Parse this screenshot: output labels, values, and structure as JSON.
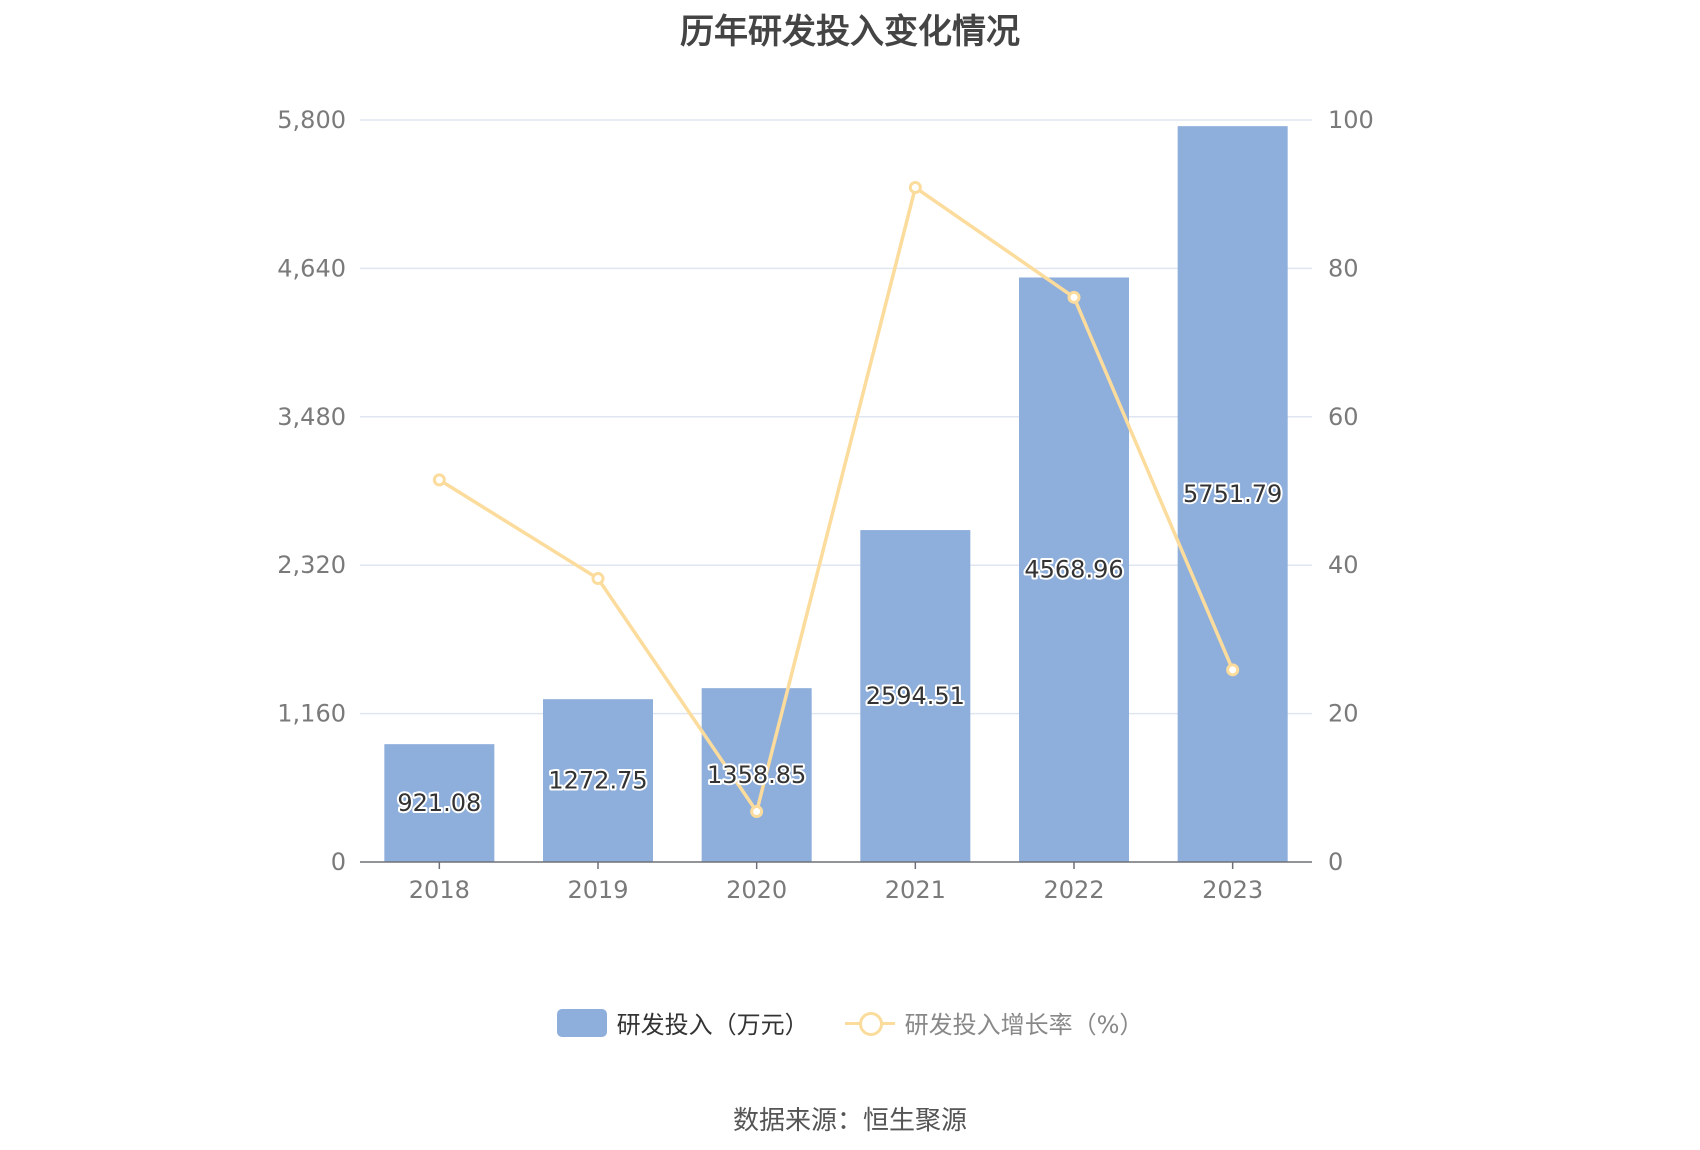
{
  "chart_data": {
    "type": "bar",
    "title": "历年研发投入变化情况",
    "categories": [
      "2018",
      "2019",
      "2020",
      "2021",
      "2022",
      "2023"
    ],
    "series": [
      {
        "name": "研发投入（万元）",
        "type": "bar",
        "axis": "left",
        "values": [
          921.08,
          1272.75,
          1358.85,
          2594.51,
          4568.96,
          5751.79
        ],
        "labels": [
          "921.08",
          "1272.75",
          "1358.85",
          "2594.51",
          "4568.96",
          "5751.79"
        ],
        "color": "#8eaedb"
      },
      {
        "name": "研发投入增长率（%）",
        "type": "line",
        "axis": "right",
        "values": [
          51.5,
          38.2,
          6.8,
          90.9,
          76.1,
          25.9
        ],
        "color": "#fcdc9c"
      }
    ],
    "y_left": {
      "range": [
        0,
        5800
      ],
      "ticks": [
        "0",
        "1,160",
        "2,320",
        "3,480",
        "4,640",
        "5,800"
      ]
    },
    "y_right": {
      "range": [
        0,
        100
      ],
      "ticks": [
        "0",
        "20",
        "40",
        "60",
        "80",
        "100"
      ]
    },
    "grid": true,
    "legend_position": "bottom-center"
  },
  "source": "数据来源：恒生聚源"
}
